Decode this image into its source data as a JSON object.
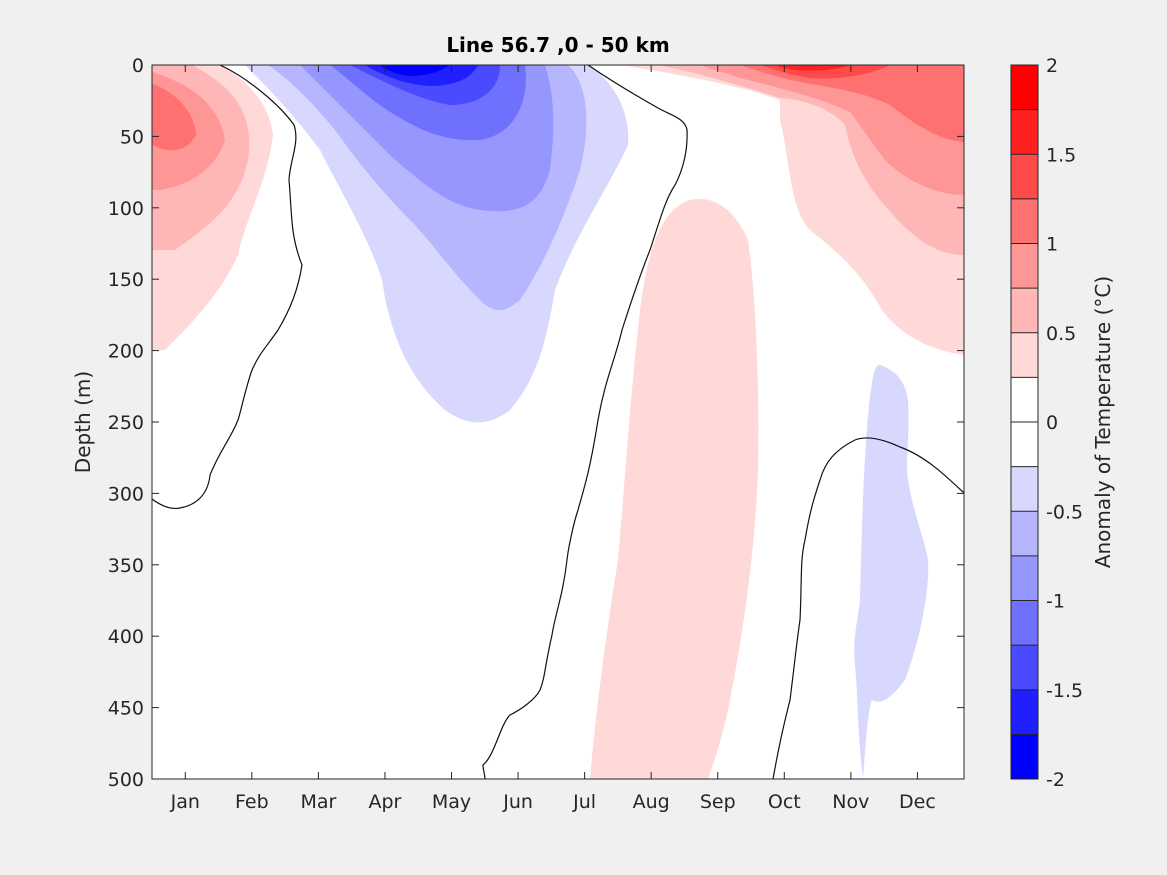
{
  "chart_data": {
    "type": "heatmap",
    "subtype": "filled-contour",
    "title": "Line 56.7 ,0 - 50 km",
    "xlabel": "",
    "ylabel": "Depth (m)",
    "x_categories": [
      "Jan",
      "Feb",
      "Mar",
      "Apr",
      "May",
      "Jun",
      "Jul",
      "Aug",
      "Sep",
      "Oct",
      "Nov",
      "Dec"
    ],
    "xlim": [
      0.5,
      12.7
    ],
    "ylim": [
      0,
      500
    ],
    "y_reversed": true,
    "y_ticks": [
      0,
      50,
      100,
      150,
      200,
      250,
      300,
      350,
      400,
      450,
      500
    ],
    "colorbar": {
      "label": "Anomaly of Temperature (°C)",
      "range": [
        -2,
        2
      ],
      "tick_values": [
        -2,
        -1.5,
        -1,
        -0.5,
        0,
        0.5,
        1,
        1.5,
        2
      ],
      "tick_labels": [
        "-2",
        "-1.5",
        "-1",
        "-0.5",
        "0",
        "0.5",
        "1",
        "1.5",
        "2"
      ],
      "levels": [
        -2,
        -1.75,
        -1.5,
        -1.25,
        -1,
        -0.75,
        -0.5,
        -0.25,
        0,
        0.25,
        0.5,
        0.75,
        1,
        1.25,
        1.5,
        1.75,
        2
      ],
      "colormap": [
        "#0000ff",
        "#2020ff",
        "#4a4aff",
        "#7070ff",
        "#9696ff",
        "#b6b6ff",
        "#d8d8ff",
        "#ffffff",
        "#ffffff",
        "#ffd8d8",
        "#ffb6b6",
        "#ff9696",
        "#ff7070",
        "#ff4a4a",
        "#ff2020",
        "#ff0000"
      ]
    },
    "regions": [
      {
        "name": "jan-warm",
        "max_anomaly": 1.0,
        "month_range": [
          "Jan",
          "Feb"
        ],
        "depth_range": [
          0,
          200
        ]
      },
      {
        "name": "spring-cool",
        "min_anomaly": -2.0,
        "month_range": [
          "Mar",
          "Jul"
        ],
        "depth_range": [
          0,
          280
        ]
      },
      {
        "name": "late-year-warm-surface",
        "max_anomaly": 2.0,
        "month_range": [
          "Aug",
          "Dec"
        ],
        "depth_range": [
          0,
          200
        ]
      },
      {
        "name": "subsurface-warm",
        "max_anomaly": 0.5,
        "month_range": [
          "Aug",
          "Sep"
        ],
        "depth_range": [
          195,
          500
        ]
      },
      {
        "name": "deep-cool",
        "min_anomaly": -0.5,
        "month_range": [
          "Nov",
          "Dec"
        ],
        "depth_range": [
          370,
          500
        ]
      }
    ],
    "zero_contours": 3
  }
}
